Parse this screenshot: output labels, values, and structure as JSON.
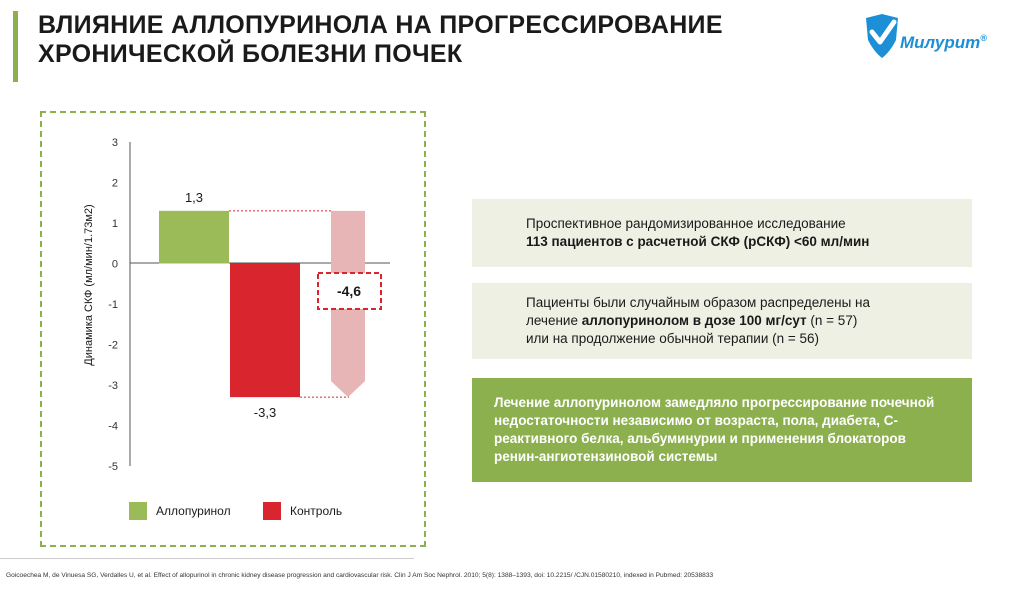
{
  "header": {
    "title_line1": "ВЛИЯНИЕ АЛЛОПУРИНОЛА НА ПРОГРЕССИРОВАНИЕ",
    "title_line2": "ХРОНИЧЕСКОЙ БОЛЕЗНИ ПОЧЕК",
    "logo_text": "Милурит",
    "logo_mark": "®"
  },
  "colors": {
    "accent": "#8db04f",
    "allopurinol": "#9bbb59",
    "control": "#d9262e",
    "difference": "#e8b5b7",
    "logo_blue": "#1d8fd6"
  },
  "chart_data": {
    "type": "bar",
    "ylabel": "Динамика СКФ (мл/мин/1.73м2)",
    "ylim": [
      -5,
      3
    ],
    "yticks": [
      "3",
      "2",
      "1",
      "0",
      "-1",
      "-2",
      "-3",
      "-4",
      "-5"
    ],
    "series": [
      {
        "name": "Аллопуринол",
        "value": 1.3,
        "label": "1,3"
      },
      {
        "name": "Контроль",
        "value": -3.3,
        "label": "-3,3"
      }
    ],
    "difference": {
      "label": "-4,6",
      "from": 1.3,
      "to": -3.3
    },
    "legend": [
      "Аллопуринол",
      "Контроль"
    ]
  },
  "boxes": {
    "box1": {
      "line1": "Проспективное рандомизированное исследование",
      "line2": "113 пациентов с расчетной СКФ (рСКФ) <60 мл/мин"
    },
    "box2": {
      "line1": "Пациенты были случайным образом распределены на",
      "line2_pre": "лечение ",
      "line2_bold": "аллопуринолом в дозе 100 мг/сут",
      "line2_post": " (n = 57)",
      "line3": "или на продолжение обычной терапии (n = 56)"
    },
    "box3": {
      "text": "Лечение аллопуринолом замедляло прогрессирование почечной недостаточности независимо от возраста, пола, диабета, С-реактивного белка, альбуминурии и применения блокаторов ренин-ангиотензиновой системы"
    }
  },
  "footnote": "Goicoechea M, de Vinuesa SG, Verdalles U, et al. Effect of allopurinol in chronic kidney disease progression and cardiovascular risk. Clin J Am Soc Nephrol. 2010; 5(8): 1388–1393, doi: 10.2215/ /CJN.01580210, indexed in Pubmed: 20538833"
}
